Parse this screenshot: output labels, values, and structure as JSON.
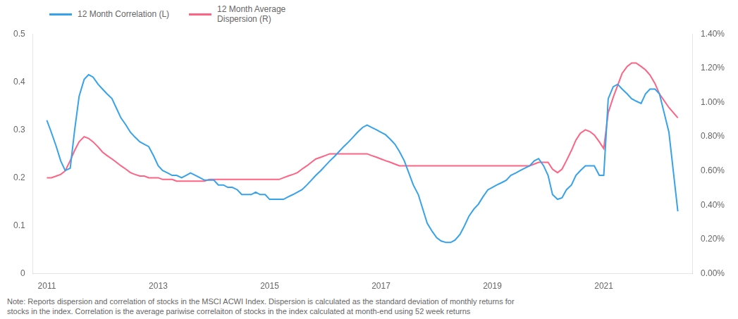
{
  "chart_data": {
    "type": "line",
    "x": [
      2011.0,
      2011.08,
      2011.17,
      2011.25,
      2011.33,
      2011.42,
      2011.5,
      2011.58,
      2011.67,
      2011.75,
      2011.83,
      2011.92,
      2012.0,
      2012.08,
      2012.17,
      2012.25,
      2012.33,
      2012.42,
      2012.5,
      2012.58,
      2012.67,
      2012.75,
      2012.83,
      2012.92,
      2013.0,
      2013.08,
      2013.17,
      2013.25,
      2013.33,
      2013.42,
      2013.5,
      2013.58,
      2013.67,
      2013.75,
      2013.83,
      2013.92,
      2014.0,
      2014.08,
      2014.17,
      2014.25,
      2014.33,
      2014.42,
      2014.5,
      2014.58,
      2014.67,
      2014.75,
      2014.83,
      2014.92,
      2015.0,
      2015.08,
      2015.17,
      2015.25,
      2015.33,
      2015.42,
      2015.5,
      2015.58,
      2015.67,
      2015.75,
      2015.83,
      2015.92,
      2016.0,
      2016.08,
      2016.17,
      2016.25,
      2016.33,
      2016.42,
      2016.5,
      2016.58,
      2016.67,
      2016.75,
      2016.83,
      2016.92,
      2017.0,
      2017.08,
      2017.17,
      2017.25,
      2017.33,
      2017.42,
      2017.5,
      2017.58,
      2017.67,
      2017.75,
      2017.83,
      2017.92,
      2018.0,
      2018.08,
      2018.17,
      2018.25,
      2018.33,
      2018.42,
      2018.5,
      2018.58,
      2018.67,
      2018.75,
      2018.83,
      2018.92,
      2019.0,
      2019.08,
      2019.17,
      2019.25,
      2019.33,
      2019.42,
      2019.5,
      2019.58,
      2019.67,
      2019.75,
      2019.83,
      2019.92,
      2020.0,
      2020.08,
      2020.17,
      2020.25,
      2020.33,
      2020.42,
      2020.5,
      2020.58,
      2020.67,
      2020.75,
      2020.83,
      2020.92,
      2021.0,
      2021.08,
      2021.17,
      2021.25,
      2021.33,
      2021.42,
      2021.5,
      2021.58,
      2021.67,
      2021.75,
      2021.83,
      2021.92,
      2022.0,
      2022.17,
      2022.33
    ],
    "series": [
      {
        "name": "12 Month Correlation (L)",
        "values": [
          0.32,
          0.295,
          0.265,
          0.235,
          0.215,
          0.22,
          0.3,
          0.37,
          0.405,
          0.415,
          0.41,
          0.395,
          0.385,
          0.375,
          0.365,
          0.345,
          0.325,
          0.31,
          0.295,
          0.285,
          0.275,
          0.27,
          0.265,
          0.245,
          0.225,
          0.215,
          0.21,
          0.205,
          0.205,
          0.2,
          0.205,
          0.21,
          0.205,
          0.2,
          0.195,
          0.195,
          0.195,
          0.185,
          0.185,
          0.18,
          0.18,
          0.175,
          0.165,
          0.165,
          0.165,
          0.17,
          0.165,
          0.165,
          0.155,
          0.155,
          0.155,
          0.155,
          0.16,
          0.165,
          0.17,
          0.175,
          0.185,
          0.195,
          0.205,
          0.215,
          0.225,
          0.235,
          0.245,
          0.255,
          0.265,
          0.275,
          0.285,
          0.295,
          0.305,
          0.31,
          0.305,
          0.3,
          0.295,
          0.29,
          0.28,
          0.27,
          0.255,
          0.235,
          0.21,
          0.185,
          0.165,
          0.135,
          0.105,
          0.088,
          0.075,
          0.068,
          0.065,
          0.065,
          0.07,
          0.082,
          0.1,
          0.12,
          0.135,
          0.145,
          0.16,
          0.175,
          0.18,
          0.185,
          0.19,
          0.195,
          0.205,
          0.21,
          0.215,
          0.22,
          0.225,
          0.235,
          0.24,
          0.225,
          0.205,
          0.165,
          0.155,
          0.158,
          0.175,
          0.185,
          0.205,
          0.215,
          0.225,
          0.225,
          0.225,
          0.205,
          0.205,
          0.365,
          0.39,
          0.395,
          0.385,
          0.375,
          0.365,
          0.36,
          0.355,
          0.375,
          0.385,
          0.385,
          0.375,
          0.295,
          0.13
        ]
      },
      {
        "name": "12 Month Average\nDispersion (R)",
        "axis": "y2",
        "values": [
          0.0056,
          0.0056,
          0.0057,
          0.0058,
          0.006,
          0.0066,
          0.0072,
          0.0077,
          0.008,
          0.0079,
          0.0077,
          0.0074,
          0.0071,
          0.0069,
          0.0067,
          0.0065,
          0.0063,
          0.0061,
          0.0059,
          0.0058,
          0.0057,
          0.0057,
          0.0056,
          0.0056,
          0.0056,
          0.0055,
          0.0055,
          0.0055,
          0.0054,
          0.0054,
          0.0054,
          0.0054,
          0.0054,
          0.0054,
          0.0054,
          0.0055,
          0.0055,
          0.0055,
          0.0055,
          0.0055,
          0.0055,
          0.0055,
          0.0055,
          0.0055,
          0.0055,
          0.0055,
          0.0055,
          0.0055,
          0.0055,
          0.0055,
          0.0055,
          0.0056,
          0.0057,
          0.0058,
          0.0059,
          0.0061,
          0.0063,
          0.0065,
          0.0067,
          0.0068,
          0.0069,
          0.007,
          0.007,
          0.007,
          0.007,
          0.007,
          0.007,
          0.007,
          0.007,
          0.007,
          0.0069,
          0.0068,
          0.0067,
          0.0066,
          0.0065,
          0.0064,
          0.0063,
          0.0063,
          0.0063,
          0.0063,
          0.0063,
          0.0063,
          0.0063,
          0.0063,
          0.0063,
          0.0063,
          0.0063,
          0.0063,
          0.0063,
          0.0063,
          0.0063,
          0.0063,
          0.0063,
          0.0063,
          0.0063,
          0.0063,
          0.0063,
          0.0063,
          0.0063,
          0.0063,
          0.0063,
          0.0063,
          0.0063,
          0.0063,
          0.0063,
          0.0064,
          0.0065,
          0.0065,
          0.0065,
          0.0061,
          0.0059,
          0.0061,
          0.0066,
          0.0072,
          0.0078,
          0.0082,
          0.0084,
          0.0083,
          0.0081,
          0.0077,
          0.0073,
          0.0094,
          0.0103,
          0.011,
          0.0117,
          0.0121,
          0.0123,
          0.0123,
          0.0121,
          0.0119,
          0.0116,
          0.0111,
          0.0105,
          0.0097,
          0.0091
        ]
      }
    ],
    "xlim": [
      2010.75,
      2022.6
    ],
    "xticks": [
      2011,
      2013,
      2015,
      2017,
      2019,
      2021
    ],
    "ylim": [
      0,
      0.5
    ],
    "yticks": [
      0,
      0.1,
      0.2,
      0.3,
      0.4,
      0.5
    ],
    "y2lim": [
      0.0,
      0.014
    ],
    "y2ticks": [
      {
        "value": 0.0,
        "label": "0.00%"
      },
      {
        "value": 0.002,
        "label": "0.20%"
      },
      {
        "value": 0.004,
        "label": "0.40%"
      },
      {
        "value": 0.006,
        "label": "0.60%"
      },
      {
        "value": 0.008,
        "label": "0.80%"
      },
      {
        "value": 0.01,
        "label": "1.00%"
      },
      {
        "value": 0.012,
        "label": "1.20%"
      },
      {
        "value": 0.014,
        "label": "1.40%"
      }
    ],
    "grid": false,
    "legend": "upper left",
    "annotations": [
      "Note: Reports dispersion and correlation of stocks in the MSCI ACWI Index. Dispersion is calculated as the standard deviation of monthly returns for",
      "stocks in the index. Correlation is the average pariwise correlaiton of stocks in the index calculated at month-end using 52 week returns"
    ]
  }
}
